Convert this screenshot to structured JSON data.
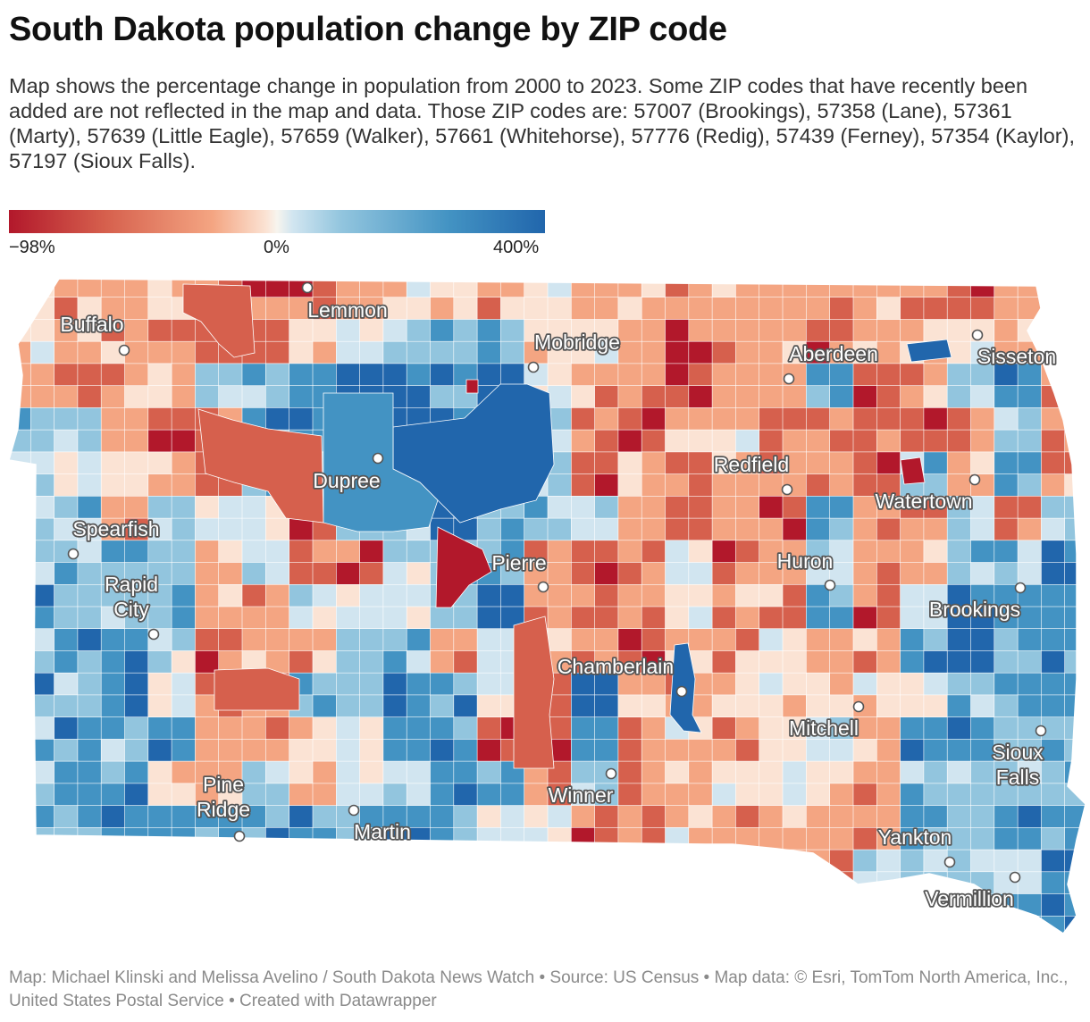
{
  "title": "South Dakota population change by ZIP code",
  "subtitle": "Map shows the percentage change in population from 2000 to 2023. Some ZIP codes that have recently been added are not reflected in the map and data. Those ZIP codes are: 57007 (Brookings), 57358 (Lane), 57361 (Marty), 57639 (Little Eagle), 57659 (Walker), 57661 (Whitehorse), 57776 (Redig), 57439 (Ferney), 57354 (Kaylor), 57197 (Sioux Falls).",
  "legend": {
    "min_label": "−98%",
    "mid_label": "0%",
    "max_label": "400%",
    "colors": [
      "#b2182b",
      "#d6604d",
      "#f4a582",
      "#fbe3d4",
      "#d1e5f0",
      "#92c5de",
      "#4393c3",
      "#2166ac"
    ]
  },
  "cities": [
    {
      "name": "Buffalo",
      "label_lines": [
        "Buffalo"
      ]
    },
    {
      "name": "Lemmon",
      "label_lines": [
        "Lemmon"
      ]
    },
    {
      "name": "Mobridge",
      "label_lines": [
        "Mobridge"
      ]
    },
    {
      "name": "Aberdeen",
      "label_lines": [
        "Aberdeen"
      ]
    },
    {
      "name": "Sisseton",
      "label_lines": [
        "Sisseton"
      ]
    },
    {
      "name": "Dupree",
      "label_lines": [
        "Dupree"
      ]
    },
    {
      "name": "Redfield",
      "label_lines": [
        "Redfield"
      ]
    },
    {
      "name": "Watertown",
      "label_lines": [
        "Watertown"
      ]
    },
    {
      "name": "Spearfish",
      "label_lines": [
        "Spearfish"
      ]
    },
    {
      "name": "Pierre",
      "label_lines": [
        "Pierre"
      ]
    },
    {
      "name": "Huron",
      "label_lines": [
        "Huron"
      ]
    },
    {
      "name": "Rapid City",
      "label_lines": [
        "Rapid",
        "City"
      ]
    },
    {
      "name": "Brookings",
      "label_lines": [
        "Brookings"
      ]
    },
    {
      "name": "Chamberlain",
      "label_lines": [
        "Chamberlain"
      ]
    },
    {
      "name": "Mitchell",
      "label_lines": [
        "Mitchell"
      ]
    },
    {
      "name": "Sioux Falls",
      "label_lines": [
        "Sioux",
        "Falls"
      ]
    },
    {
      "name": "Pine Ridge",
      "label_lines": [
        "Pine",
        "Ridge"
      ]
    },
    {
      "name": "Winner",
      "label_lines": [
        "Winner"
      ]
    },
    {
      "name": "Martin",
      "label_lines": [
        "Martin"
      ]
    },
    {
      "name": "Yankton",
      "label_lines": [
        "Yankton"
      ]
    },
    {
      "name": "Vermillion",
      "label_lines": [
        "Vermillion"
      ]
    }
  ],
  "footer": "Map: Michael Klinski and Melissa Avelino / South Dakota News Watch • Source: US Census • Map data: © Esri, TomTom North America, Inc., United States Postal Service  • Created with Datawrapper"
}
